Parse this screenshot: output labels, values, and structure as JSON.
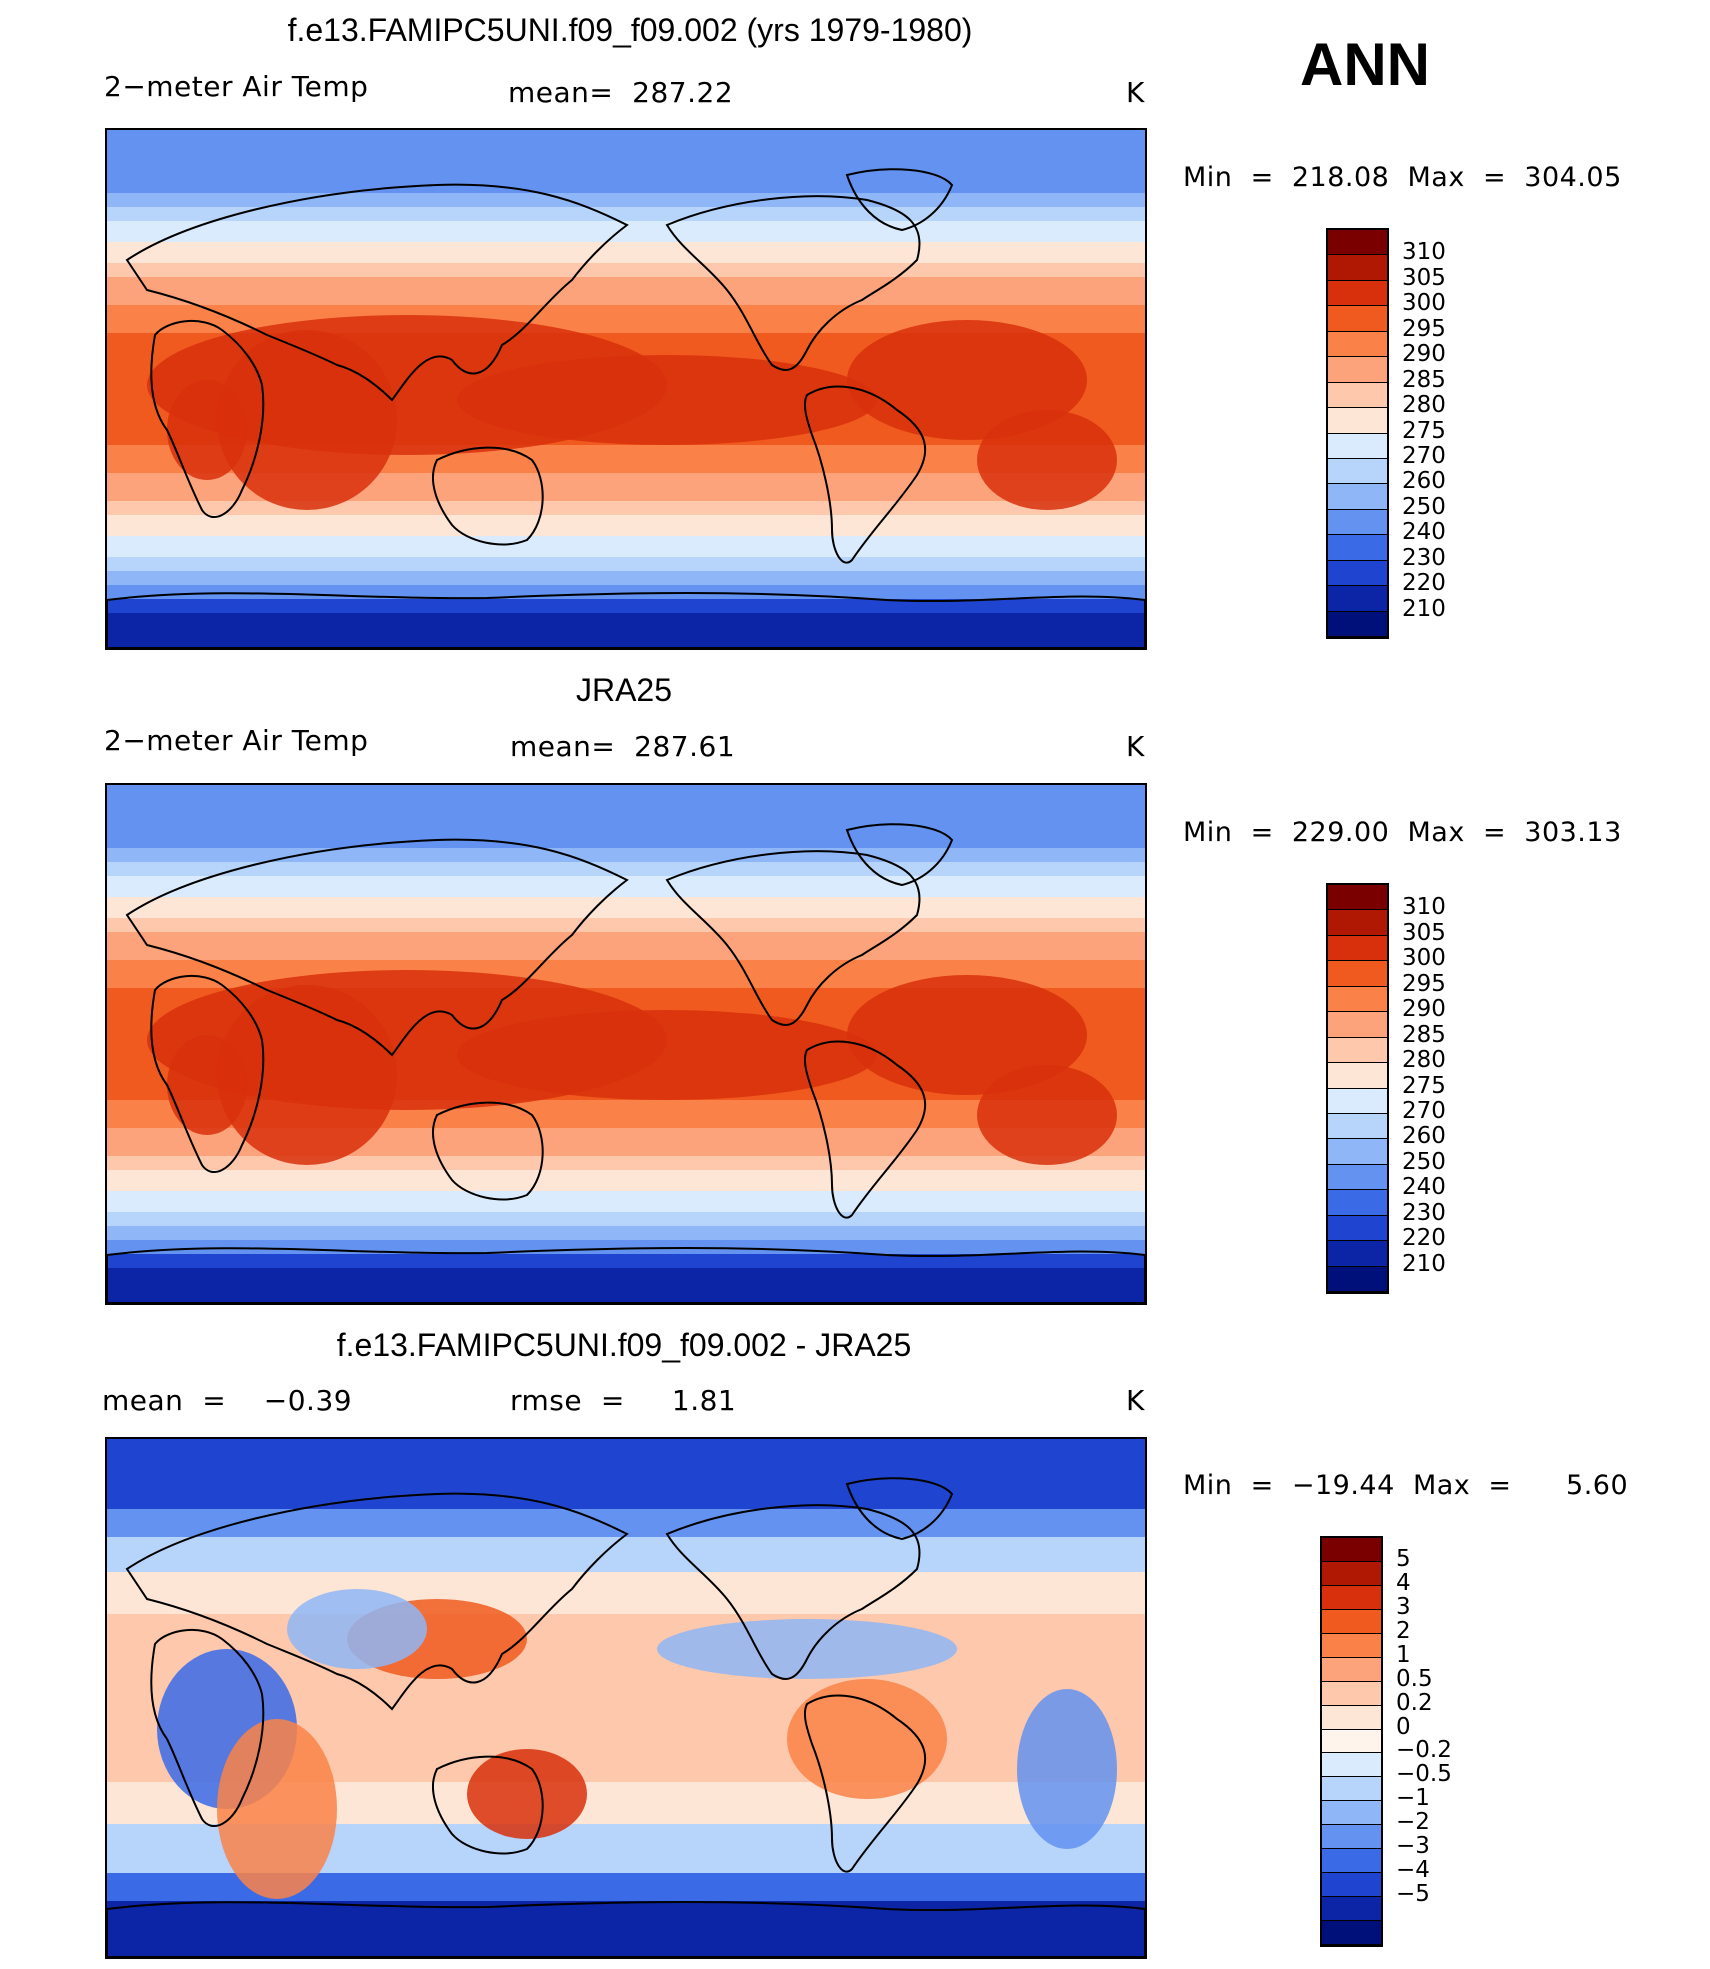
{
  "season": "ANN",
  "panels": [
    {
      "title": "f.e13.FAMIPC5UNI.f09_f09.002 (yrs 1979-1980)",
      "left_label": "2−meter Air Temp",
      "center_label": "mean=  287.22",
      "units": "K",
      "minmax": "Min  =  218.08  Max  =  304.05",
      "kind": "abs",
      "colorbar_labels": [
        "310",
        "305",
        "300",
        "295",
        "290",
        "285",
        "280",
        "275",
        "270",
        "260",
        "250",
        "240",
        "230",
        "220",
        "210"
      ]
    },
    {
      "title": "JRA25",
      "left_label": "2−meter Air Temp",
      "center_label": "mean=  287.61",
      "units": "K",
      "minmax": "Min  =  229.00  Max  =  303.13",
      "kind": "abs",
      "colorbar_labels": [
        "310",
        "305",
        "300",
        "295",
        "290",
        "285",
        "280",
        "275",
        "270",
        "260",
        "250",
        "240",
        "230",
        "220",
        "210"
      ]
    },
    {
      "title": "f.e13.FAMIPC5UNI.f09_f09.002 - JRA25",
      "left_label": "mean  =    −0.39",
      "center_label": "rmse  =     1.81",
      "units": "K",
      "minmax": "Min  =  −19.44  Max  =      5.60",
      "kind": "diff",
      "colorbar_labels": [
        "5",
        "4",
        "3",
        "2",
        "1",
        "0.5",
        "0.2",
        "0",
        "−0.2",
        "−0.5",
        "−1",
        "−2",
        "−3",
        "−4",
        "−5"
      ]
    }
  ],
  "colors": {
    "abs_palette": [
      "#7a0000",
      "#b01804",
      "#d8300c",
      "#f05a1e",
      "#fa8248",
      "#fca37c",
      "#fdc8ac",
      "#fde6d6",
      "#d9ebfd",
      "#b7d4fb",
      "#8fb6f6",
      "#6392f0",
      "#3a6ae6",
      "#1f44cf",
      "#0c24a6",
      "#00107a"
    ],
    "diff_palette": [
      "#7a0000",
      "#b01804",
      "#d8300c",
      "#f05a1e",
      "#fa8248",
      "#fca37c",
      "#fdc8ac",
      "#fde6d6",
      "#fff4ec",
      "#d9ebfd",
      "#b7d4fb",
      "#8fb6f6",
      "#6392f0",
      "#3a6ae6",
      "#1f44cf",
      "#0c24a6",
      "#00107a"
    ]
  }
}
